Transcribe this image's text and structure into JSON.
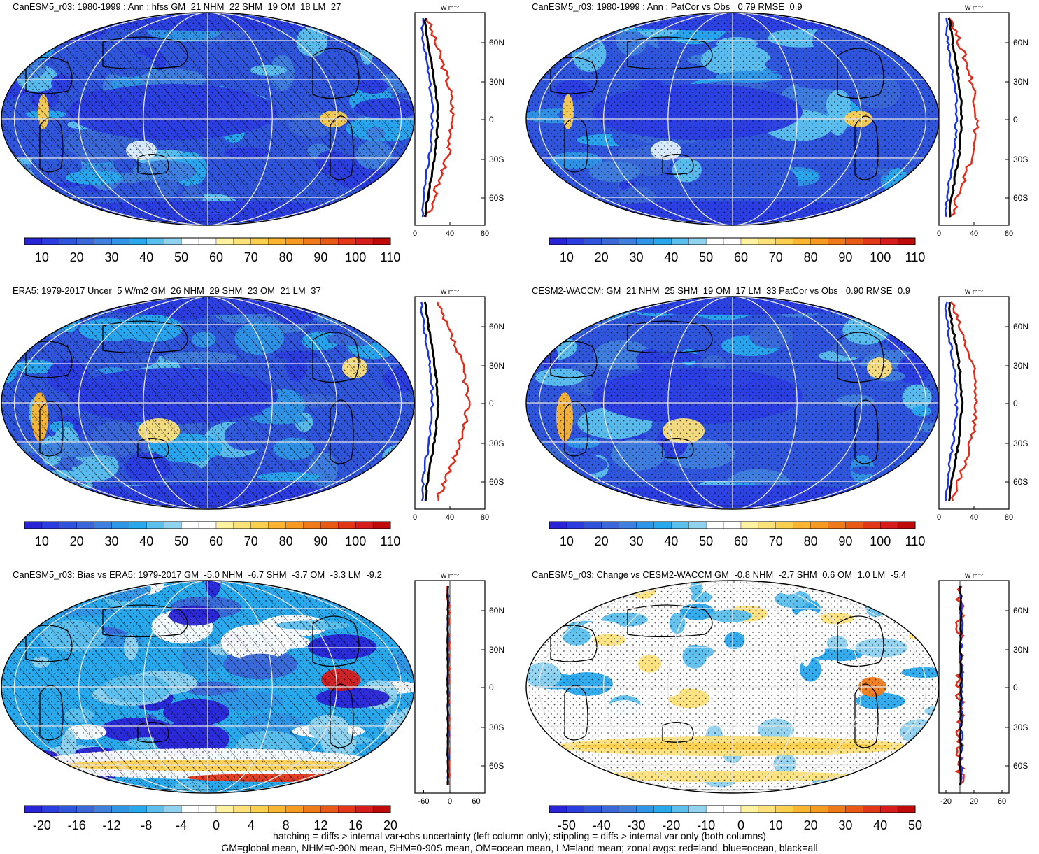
{
  "panels": [
    {
      "id": "p1",
      "title": "CanESM5_r03: 1980-1999 : Ann : hfss GM=21 NHM=22 SHM=19 OM=18 LM=27",
      "left": true,
      "hatch": true,
      "mapStyle": "abs",
      "cbar": "abs",
      "zonalStyle": "abs1",
      "zonalTicks": [
        "0",
        "40",
        "80"
      ],
      "zonalRange": [
        0,
        80
      ]
    },
    {
      "id": "p2",
      "title": "CanESM5_r03: 1980-1999 : Ann : PatCor vs Obs =0.79 RMSE=0.9",
      "left": false,
      "hatch": false,
      "mapStyle": "abs",
      "cbar": "abs",
      "zonalStyle": "abs1",
      "zonalTicks": [
        "0",
        "40",
        "80"
      ],
      "zonalRange": [
        0,
        80
      ]
    },
    {
      "id": "p3",
      "title": "ERA5: 1979-2017 Uncer=5 W/m2 GM=26 NHM=29 SHM=23 OM=21 LM=37",
      "left": true,
      "hatch": true,
      "mapStyle": "abs2",
      "cbar": "abs",
      "zonalStyle": "abs2",
      "zonalTicks": [
        "0",
        "40",
        "80"
      ],
      "zonalRange": [
        0,
        80
      ]
    },
    {
      "id": "p4",
      "title": "CESM2-WACCM: GM=21 NHM=25 SHM=19 OM=17 LM=33 PatCor vs Obs =0.90 RMSE=0.9",
      "left": false,
      "hatch": false,
      "mapStyle": "abs2",
      "cbar": "abs",
      "zonalStyle": "abs3",
      "zonalTicks": [
        "0",
        "40",
        "80"
      ],
      "zonalRange": [
        0,
        80
      ]
    },
    {
      "id": "p5",
      "title": "CanESM5_r03: Bias vs ERA5: 1979-2017 GM=-5.0 NHM=-6.7 SHM=-3.7 OM=-3.3 LM=-9.2",
      "left": true,
      "hatch": true,
      "mapStyle": "bias",
      "cbar": "bias",
      "zonalStyle": "bias",
      "zonalTicks": [
        "-60",
        "0",
        "60"
      ],
      "zonalRange": [
        -80,
        80
      ]
    },
    {
      "id": "p6",
      "title": "CanESM5_r03: Change vs CESM2-WACCM GM=-0.8 NHM=-2.7 SHM=0.6 OM=1.0 LM=-5.4",
      "left": false,
      "hatch": false,
      "mapStyle": "change",
      "cbar": "change",
      "zonalStyle": "change",
      "zonalTicks": [
        "-20",
        "20",
        "60"
      ],
      "zonalRange": [
        -30,
        70
      ]
    }
  ],
  "lat_labels": [
    "60N",
    "30N",
    "0",
    "30S",
    "60S"
  ],
  "units": "W m⁻²",
  "colorbars": {
    "abs": {
      "labels": [
        "10",
        "20",
        "30",
        "40",
        "50",
        "60",
        "70",
        "80",
        "90",
        "100",
        "110"
      ]
    },
    "bias": {
      "labels": [
        "-20",
        "-16",
        "-12",
        "-8",
        "-4",
        "0",
        "4",
        "8",
        "12",
        "16",
        "20"
      ]
    },
    "change": {
      "labels": [
        "-50",
        "-40",
        "-30",
        "-20",
        "-10",
        "0",
        "10",
        "20",
        "30",
        "40",
        "50"
      ]
    }
  },
  "palette": [
    "#2a24d8",
    "#2b3de0",
    "#2f55dc",
    "#3a68d8",
    "#3f7fde",
    "#2f95e6",
    "#28a9ee",
    "#5cc0ee",
    "#8fd3f0",
    "#ffffff",
    "#ffffff",
    "#fff2a0",
    "#fde27a",
    "#fccf4e",
    "#fbb531",
    "#f69a22",
    "#f07a1a",
    "#ea5a17",
    "#e43718",
    "#d81b1b",
    "#c00a0a"
  ],
  "footer": {
    "line1": "hatching = diffs > internal var+obs uncertainty (left column only); stippling = diffs > internal var only (both columns)",
    "line2": "GM=global mean, NHM=0-90N mean, SHM=0-90S mean, OM=ocean mean, LM=land mean; zonal avgs: red=land, blue=ocean, black=all"
  }
}
